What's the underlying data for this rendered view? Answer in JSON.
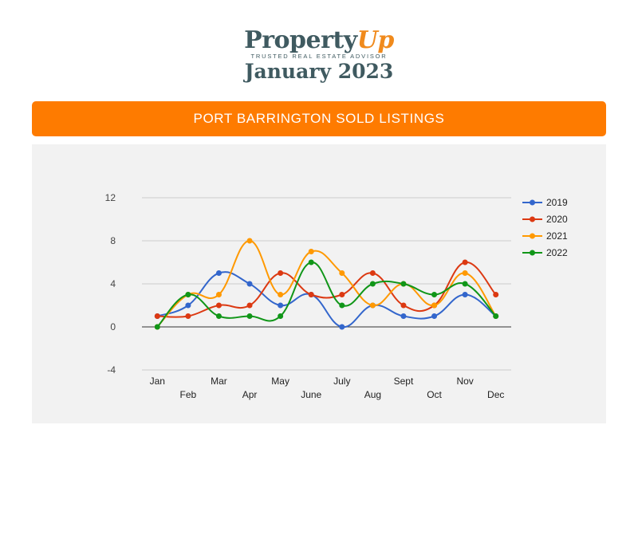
{
  "logo": {
    "brand_main": "Property",
    "brand_accent": "Up",
    "tagline": "TRUSTED REAL ESTATE ADVISOR",
    "date": "January 2023"
  },
  "banner": {
    "title": "PORT BARRINGTON SOLD LISTINGS",
    "color": "#fe7b00"
  },
  "chart_data": {
    "type": "line",
    "smooth": true,
    "categories": [
      "Jan",
      "Feb",
      "Mar",
      "Apr",
      "May",
      "June",
      "July",
      "Aug",
      "Sept",
      "Oct",
      "Nov",
      "Dec"
    ],
    "y_ticks": [
      -4,
      0,
      4,
      8,
      12
    ],
    "ylim": [
      -4,
      12
    ],
    "grid": true,
    "legend_position": "right",
    "series": [
      {
        "name": "2019",
        "color": "#3366cc",
        "values": [
          1,
          2,
          5,
          4,
          2,
          3,
          0,
          2,
          1,
          1,
          3,
          1
        ]
      },
      {
        "name": "2020",
        "color": "#dc3912",
        "values": [
          1,
          1,
          2,
          2,
          5,
          3,
          3,
          5,
          2,
          2,
          6,
          3
        ]
      },
      {
        "name": "2021",
        "color": "#ff9900",
        "values": [
          0,
          3,
          3,
          8,
          3,
          7,
          5,
          2,
          4,
          2,
          5,
          1
        ]
      },
      {
        "name": "2022",
        "color": "#109618",
        "values": [
          0,
          3,
          1,
          1,
          1,
          6,
          2,
          4,
          4,
          3,
          4,
          1
        ]
      }
    ]
  }
}
